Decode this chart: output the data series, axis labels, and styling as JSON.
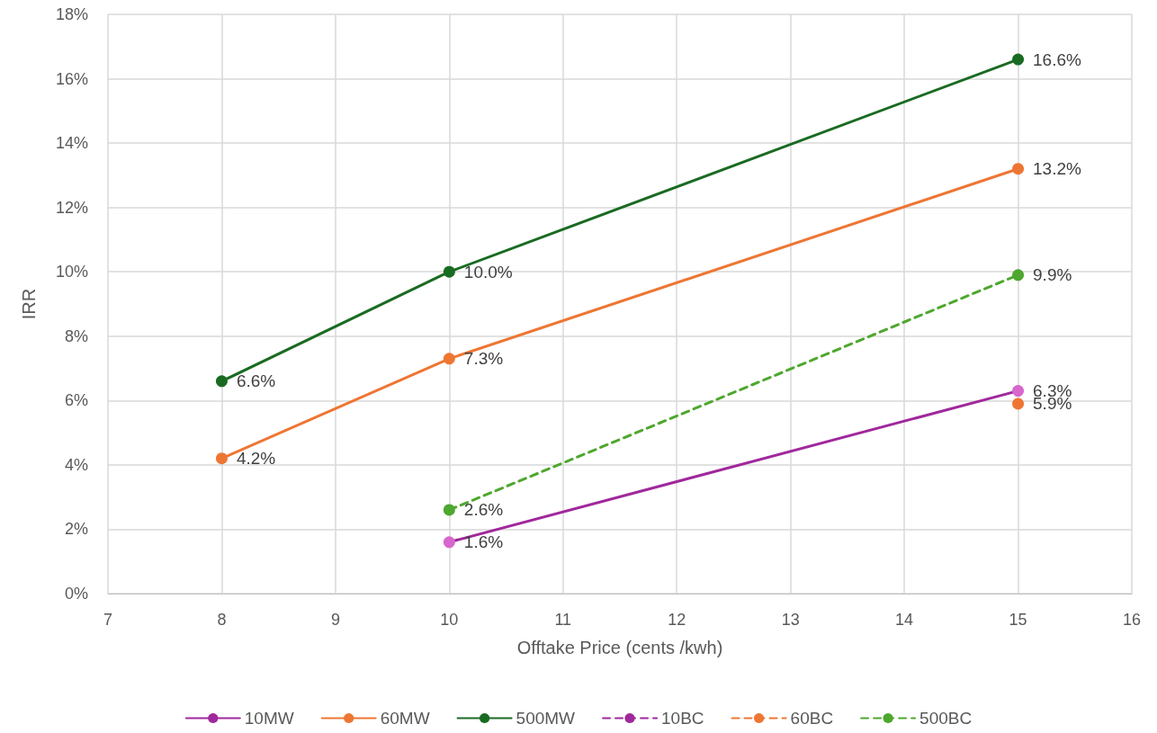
{
  "chart_data": {
    "type": "line",
    "xlabel": "Offtake Price (cents /kwh)",
    "ylabel": "IRR",
    "xlim": [
      7,
      16
    ],
    "xticks": [
      7,
      8,
      9,
      10,
      11,
      12,
      13,
      14,
      15,
      16
    ],
    "ylim": [
      0,
      18
    ],
    "yticks": [
      {
        "value": 0,
        "label": "0%"
      },
      {
        "value": 2,
        "label": "2%"
      },
      {
        "value": 4,
        "label": "4%"
      },
      {
        "value": 6,
        "label": "6%"
      },
      {
        "value": 8,
        "label": "8%"
      },
      {
        "value": 10,
        "label": "10%"
      },
      {
        "value": 12,
        "label": "12%"
      },
      {
        "value": 14,
        "label": "14%"
      },
      {
        "value": 16,
        "label": "16%"
      },
      {
        "value": 18,
        "label": "18%"
      }
    ],
    "grid": true,
    "legend": "bottom",
    "marker": "circle",
    "series": [
      {
        "name": "10MW",
        "color": "#a0289c",
        "colors": [
          "#d767cd",
          "#d767cd"
        ],
        "line_style": "solid",
        "x": [
          10,
          15
        ],
        "values": [
          1.6,
          6.3
        ],
        "value_labels": [
          "1.6%",
          "6.3%"
        ]
      },
      {
        "name": "60MW",
        "color": "#ee7633",
        "line_style": "solid",
        "x": [
          8,
          10,
          15
        ],
        "values": [
          4.2,
          7.3,
          13.2
        ],
        "value_labels": [
          "4.2%",
          "7.3%",
          "13.2%"
        ]
      },
      {
        "name": "500MW",
        "color": "#1a6b22",
        "line_style": "solid",
        "x": [
          8,
          10,
          15
        ],
        "values": [
          6.6,
          10.0,
          16.6
        ],
        "value_labels": [
          "6.6%",
          "10.0%",
          "16.6%"
        ]
      },
      {
        "name": "10BC",
        "color": "#a0289c",
        "line_style": "dashed"
      },
      {
        "name": "60BC",
        "color": "#ee7633",
        "line_style": "dashed",
        "x": [
          15
        ],
        "values": [
          5.9
        ],
        "value_labels": [
          "5.9%"
        ]
      },
      {
        "name": "500BC",
        "color": "#4ea72e",
        "line_style": "dashed",
        "x": [
          10,
          15
        ],
        "values": [
          2.6,
          9.9
        ],
        "value_labels": [
          "2.6%",
          "9.9%"
        ]
      }
    ]
  }
}
